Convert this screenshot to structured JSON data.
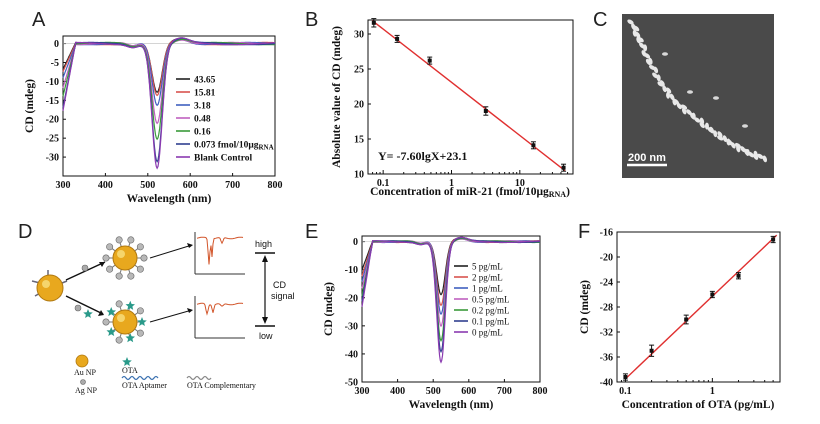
{
  "panels": {
    "a": {
      "label": "A"
    },
    "b": {
      "label": "B"
    },
    "c": {
      "label": "C",
      "scale_bar": "200 nm"
    },
    "d": {
      "label": "D",
      "high": "high",
      "low": "low",
      "cd_signal_1": "CD",
      "cd_signal_2": "signal",
      "au_np": "Au NP",
      "ag_np": "Ag NP",
      "ota": "OTA",
      "ota_aptamer": "OTA Aptamer",
      "ota_complementary": "OTA Complementary"
    },
    "e": {
      "label": "E"
    },
    "f": {
      "label": "F"
    }
  },
  "chart_data": [
    {
      "id": "A",
      "type": "line",
      "xlabel": "Wavelength (nm)",
      "ylabel": "CD (mdeg)",
      "xlim": [
        300,
        800
      ],
      "ylim": [
        -35,
        2
      ],
      "xticks": [
        300,
        400,
        500,
        600,
        700,
        800
      ],
      "yticks": [
        0,
        -5,
        -10,
        -15,
        -20,
        -25,
        -30
      ],
      "series": [
        {
          "name": "43.65",
          "color": "#222222",
          "min": -13
        },
        {
          "name": "15.81",
          "color": "#d9534f",
          "min": -14
        },
        {
          "name": "3.18",
          "color": "#4060c0",
          "min": -16.5
        },
        {
          "name": "0.48",
          "color": "#c060c0",
          "min": -21
        },
        {
          "name": "0.16",
          "color": "#3a9a3a",
          "min": -25
        },
        {
          "name": "0.073 fmol/10μg",
          "sub": "RNA",
          "color": "#304090",
          "min": -31
        },
        {
          "name": "Blank Control",
          "color": "#8a3ab0",
          "min": -33
        }
      ]
    },
    {
      "id": "B",
      "type": "scatter",
      "xlabel": "Concentration of miR-21 (fmol/10μg",
      "xlabel_sub": "RNA",
      "xlabel_end": ")",
      "ylabel": "Absolute value of CD (mdeg)",
      "xscale": "log",
      "xlim": [
        0.06,
        60
      ],
      "ylim": [
        10,
        32
      ],
      "xticks": [
        0.1,
        1,
        10
      ],
      "yticks": [
        10,
        15,
        20,
        25,
        30
      ],
      "equation": "Y= -7.60lgX+23.1",
      "points": [
        {
          "x": 0.073,
          "y": 31.6,
          "err": 0.6
        },
        {
          "x": 0.16,
          "y": 29.3,
          "err": 0.5
        },
        {
          "x": 0.48,
          "y": 26.2,
          "err": 0.5
        },
        {
          "x": 3.18,
          "y": 19.0,
          "err": 0.6
        },
        {
          "x": 15.81,
          "y": 14.1,
          "err": 0.5
        },
        {
          "x": 43.65,
          "y": 10.9,
          "err": 0.5
        }
      ],
      "fit": {
        "slope": -7.6,
        "intercept": 23.1,
        "color": "#e03030"
      }
    },
    {
      "id": "E",
      "type": "line",
      "xlabel": "Wavelength (nm)",
      "ylabel": "CD (mdeg)",
      "xlim": [
        300,
        800
      ],
      "ylim": [
        -50,
        2
      ],
      "xticks": [
        300,
        400,
        500,
        600,
        700,
        800
      ],
      "yticks": [
        0,
        -10,
        -20,
        -30,
        -40,
        -50
      ],
      "series": [
        {
          "name": "5 pg/mL",
          "color": "#222222",
          "min": -19
        },
        {
          "name": "2 pg/mL",
          "color": "#d9534f",
          "min": -23
        },
        {
          "name": "1 pg/mL",
          "color": "#4060c0",
          "min": -26
        },
        {
          "name": "0.5 pg/mL",
          "color": "#c060c0",
          "min": -30
        },
        {
          "name": "0.2 pg/mL",
          "color": "#3a9a3a",
          "min": -35
        },
        {
          "name": "0.1 pg/mL",
          "color": "#304090",
          "min": -39
        },
        {
          "name": "0 pg/mL",
          "color": "#8a3ab0",
          "min": -43
        }
      ]
    },
    {
      "id": "F",
      "type": "scatter",
      "xlabel": "Concentration of OTA (pg/mL)",
      "ylabel": "CD (mdeg)",
      "xscale": "log",
      "xlim": [
        0.08,
        6
      ],
      "ylim": [
        -40,
        -16
      ],
      "xticks": [
        0.1,
        1
      ],
      "yticks": [
        -16,
        -20,
        -24,
        -28,
        -32,
        -36,
        -40
      ],
      "points": [
        {
          "x": 0.1,
          "y": -39.2,
          "err": 0.5
        },
        {
          "x": 0.2,
          "y": -35.0,
          "err": 0.9
        },
        {
          "x": 0.5,
          "y": -30.0,
          "err": 0.7
        },
        {
          "x": 1,
          "y": -26.0,
          "err": 0.5
        },
        {
          "x": 2,
          "y": -23.0,
          "err": 0.5
        },
        {
          "x": 5,
          "y": -17.2,
          "err": 0.5
        }
      ],
      "fit": {
        "x0": 0.1,
        "y0": -39.5,
        "x1": 5.5,
        "y1": -16.5,
        "color": "#e03030"
      }
    }
  ]
}
